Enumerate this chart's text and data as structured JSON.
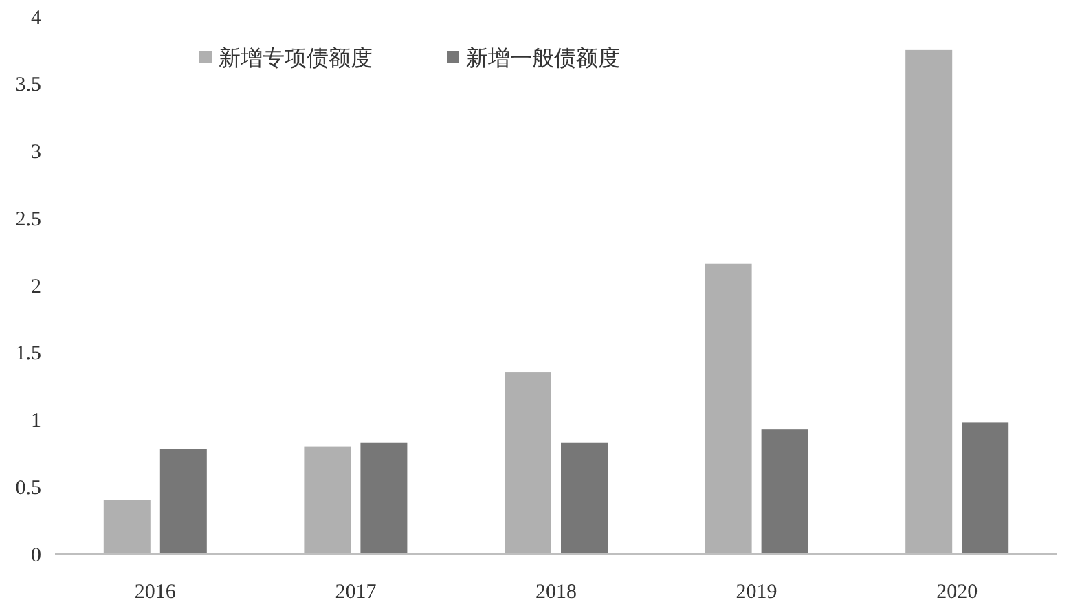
{
  "chart_data": {
    "type": "bar",
    "categories": [
      "2016",
      "2017",
      "2018",
      "2019",
      "2020"
    ],
    "series": [
      {
        "name": "新增专项债额度",
        "color": "#b0b0b0",
        "values": [
          0.4,
          0.8,
          1.35,
          2.16,
          3.75
        ]
      },
      {
        "name": "新增一般债额度",
        "color": "#777777",
        "values": [
          0.78,
          0.83,
          0.83,
          0.93,
          0.98
        ]
      }
    ],
    "ylim": [
      0,
      4
    ],
    "yticks": [
      0,
      0.5,
      1,
      1.5,
      2,
      2.5,
      3,
      3.5,
      4
    ],
    "grid": false,
    "legend": "top left"
  }
}
